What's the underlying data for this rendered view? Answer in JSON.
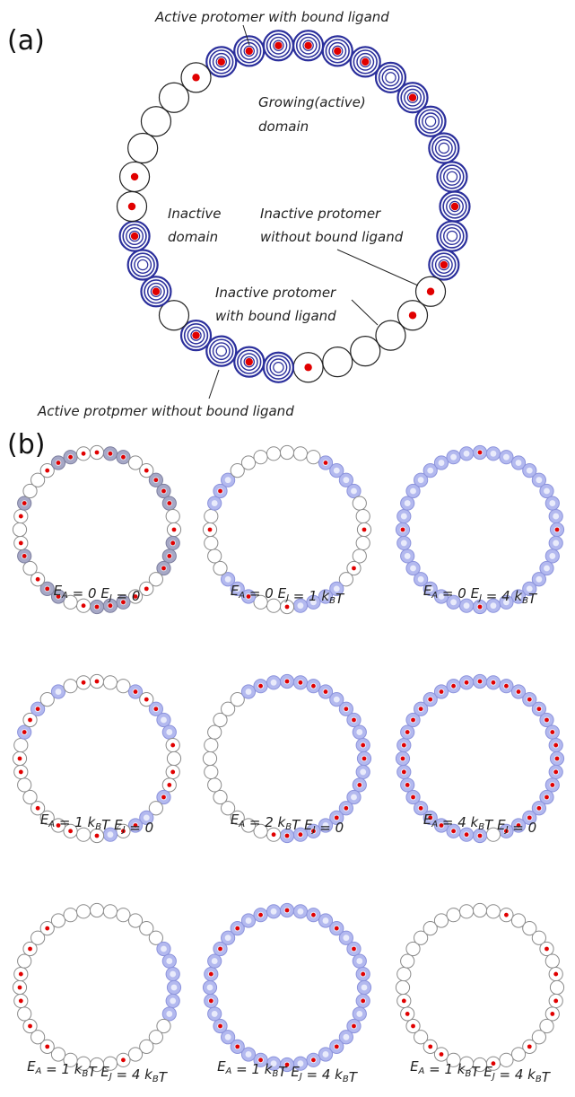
{
  "panel_a": {
    "label": "(a)",
    "annotations": {
      "active_bound": "Active protomer with bound ligand",
      "growing_line1": "Growing(active)",
      "growing_line2": "domain",
      "inactive_line1": "Inactive",
      "inactive_line2": "domain",
      "inactive_without_line1": "Inactive protomer",
      "inactive_without_line2": "without bound ligand",
      "inactive_with_line1": "Inactive protomer",
      "inactive_with_line2": "with bound ligand",
      "active_without": "Active protpmer without bound ligand"
    },
    "ring": {
      "count": 34,
      "states": [
        "AB",
        "AB",
        "AB",
        "AB",
        "AB",
        "AB",
        "A",
        "AB",
        "A",
        "A",
        "A",
        "AB",
        "A",
        "AB",
        "IB",
        "IB",
        "I",
        "I",
        "I",
        "IB",
        "A",
        "AB",
        "A",
        "AB",
        "I",
        "AB",
        "A",
        "AB",
        "IB",
        "IB",
        "I",
        "I",
        "I",
        "IB"
      ]
    }
  },
  "panel_b": {
    "label": "(b)",
    "rings": [
      {
        "caption": {
          "a": "E",
          "asub": "A",
          "aval": " = 0",
          "j": "E",
          "jsub": "J",
          "jval": " = 0"
        },
        "states": "IB,GB,GB,I,IB,GB,GB,GB,I,IB,GB,GB,GB,I,IB,IB,GB,GB,GB,IB,I,GB,GB,IB,I,GB,IB,I,IB,GB,I,I,IB,GB,GB,IB"
      },
      {
        "caption": {
          "a": "E",
          "asub": "A",
          "aval": " = 0",
          "j": "E",
          "jsub": "J",
          "jval": " = 1 k",
          "jk": "B",
          "jt": "T"
        },
        "states": "I,I,I,AB,A,A,A,I,I,IB,I,I,IB,I,A,A,A,A,IB,I,I,AB,A,A,I,I,I,IB,I,A,AB,A,I,I,I,I"
      },
      {
        "caption": {
          "a": "E",
          "asub": "A",
          "aval": " = 0",
          "j": "E",
          "jsub": "J",
          "jval": " = 4 k",
          "jk": "B",
          "jt": "T"
        },
        "states": "AB,A,A,A,A,A,A,A,A,AB,A,A,A,A,A,A,A,A,AB,A,A,A,A,A,A,A,A,AB,A,A,A,A,A,A,A,A"
      },
      {
        "caption": {
          "a": "E",
          "asub": "A",
          "aval": " = 1 k",
          "ak": "B",
          "at": "T",
          "j": "E",
          "jsub": "J",
          "jval": " = 0"
        },
        "states": "IB,I,I,AB,IB,AB,A,A,IB,I,IB,IB,AB,I,A,AB,IB,A,IB,I,IB,IB,I,IB,I,I,IB,IB,I,AB,IB,AB,I,A,I,IB"
      },
      {
        "caption": {
          "a": "E",
          "asub": "A",
          "aval": " = 2 k",
          "ak": "B",
          "at": "T",
          "j": "E",
          "jsub": "J",
          "jval": " = 0"
        },
        "states": "AB,AB,AB,AB,A,AB,AB,A,AB,AB,A,AB,A,AB,AB,A,AB,AB,AB,IB,I,I,I,I,I,I,I,I,I,I,I,I,I,A,AB,A"
      },
      {
        "caption": {
          "a": "E",
          "asub": "A",
          "aval": " = 4 k",
          "ak": "B",
          "at": "T",
          "j": "E",
          "jsub": "J",
          "jval": " = 0"
        },
        "states": "AB,AB,AB,AB,AB,AB,AB,AB,AB,AB,AB,AB,AB,AB,AB,AB,AB,I,AB,AB,AB,AB,AB,AB,AB,AB,AB,AB,AB,AB,AB,AB,AB,AB,AB,AB"
      },
      {
        "caption": {
          "a": "E",
          "asub": "A",
          "aval": " = 1 k",
          "ak": "B",
          "at": "T",
          "j": "E",
          "jsub": "J",
          "jval": " = 4 k",
          "jk": "B",
          "jt": "T"
        },
        "states": "I,I,I,I,I,I,A,A,A,A,A,A,I,I,I,I,IB,I,I,I,I,I,IB,I,IB,I,IB,IB,IB,I,IB,I,IB,I,I,I"
      },
      {
        "caption": {
          "a": "E",
          "asub": "A",
          "aval": " = 1 k",
          "ak": "B",
          "at": "T",
          "j": "E",
          "jsub": "J",
          "jval": " = 4 k",
          "jk": "B",
          "jt": "T"
        },
        "states": "AB,A,AB,A,AB,A,AB,A,AB,A,AB,A,AB,A,AB,A,AB,A,AB,A,AB,A,AB,A,AB,A,AB,A,AB,A,AB,A,AB,A,AB,A"
      },
      {
        "caption": {
          "a": "E",
          "asub": "A",
          "aval": " = 1 k",
          "ak": "B",
          "at": "T",
          "j": "E",
          "jsub": "J",
          "jval": " = 4 k",
          "jk": "B",
          "jt": "T"
        },
        "states": "I,I,IB,I,I,I,IB,I,IB,I,IB,IB,I,I,IB,I,I,IB,I,I,I,IB,IB,I,IB,IB,IB,I,I,I,I,I,I,I,I,I"
      }
    ]
  },
  "colors": {
    "inactive_stroke": "#333333",
    "active_fill": "#b3b9ef",
    "active_stroke": "#2b2f9c",
    "ligand": "#e10000",
    "gray_active": "#a6a8c6"
  }
}
